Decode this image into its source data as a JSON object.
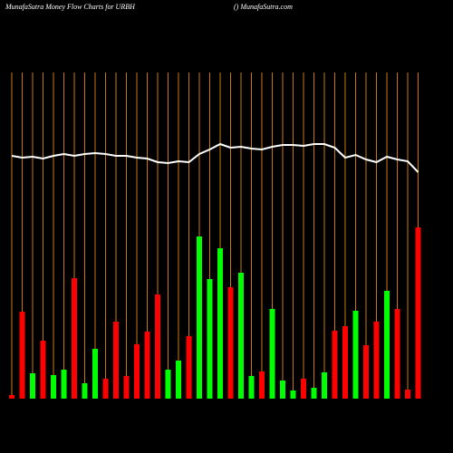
{
  "chart_data": {
    "type": "bar",
    "title": "MunafaSutra  Money Flow  Charts for URBH",
    "subtitle": "() MunafaSutra.com",
    "categories": [
      null,
      null,
      null,
      null,
      null,
      null,
      null,
      null,
      null,
      null,
      null,
      null,
      null,
      null,
      null,
      null,
      null,
      null,
      null,
      null,
      null,
      null,
      null,
      null,
      null,
      null,
      null,
      null,
      null,
      null,
      null,
      null,
      null,
      null,
      null,
      null,
      null,
      null,
      null,
      null
    ],
    "ylim": [
      0,
      360
    ],
    "grid": true,
    "grid_color": "#c87a10",
    "series": [
      {
        "type": "bar",
        "values": [
          4,
          96,
          28,
          64,
          26,
          32,
          133,
          17,
          55,
          22,
          85,
          25,
          60,
          74,
          115,
          32,
          42,
          69,
          179,
          132,
          166,
          123,
          139,
          25,
          30,
          99,
          20,
          9,
          22,
          12,
          29,
          75,
          80,
          97,
          59,
          85,
          119,
          99,
          10,
          189
        ],
        "colors": [
          "#ff0000",
          "#ff0000",
          "#00ff00",
          "#ff0000",
          "#00ff00",
          "#00ff00",
          "#ff0000",
          "#00ff00",
          "#00ff00",
          "#ff0000",
          "#ff0000",
          "#ff0000",
          "#ff0000",
          "#ff0000",
          "#ff0000",
          "#00ff00",
          "#00ff00",
          "#ff0000",
          "#00ff00",
          "#00ff00",
          "#00ff00",
          "#ff0000",
          "#00ff00",
          "#00ff00",
          "#ff0000",
          "#00ff00",
          "#00ff00",
          "#00ff00",
          "#ff0000",
          "#00ff00",
          "#00ff00",
          "#ff0000",
          "#ff0000",
          "#00ff00",
          "#ff0000",
          "#ff0000",
          "#00ff00",
          "#ff0000",
          "#ff0000",
          "#ff0000"
        ]
      },
      {
        "type": "line",
        "color": "#ffffff",
        "values": [
          268,
          266,
          267,
          265,
          268,
          270,
          268,
          270,
          271,
          270,
          268,
          268,
          266,
          265,
          261,
          260,
          262,
          261,
          270,
          275,
          281,
          277,
          278,
          276,
          275,
          278,
          280,
          280,
          279,
          281,
          281,
          277,
          266,
          269,
          264,
          261,
          267,
          264,
          262,
          250
        ]
      }
    ]
  }
}
